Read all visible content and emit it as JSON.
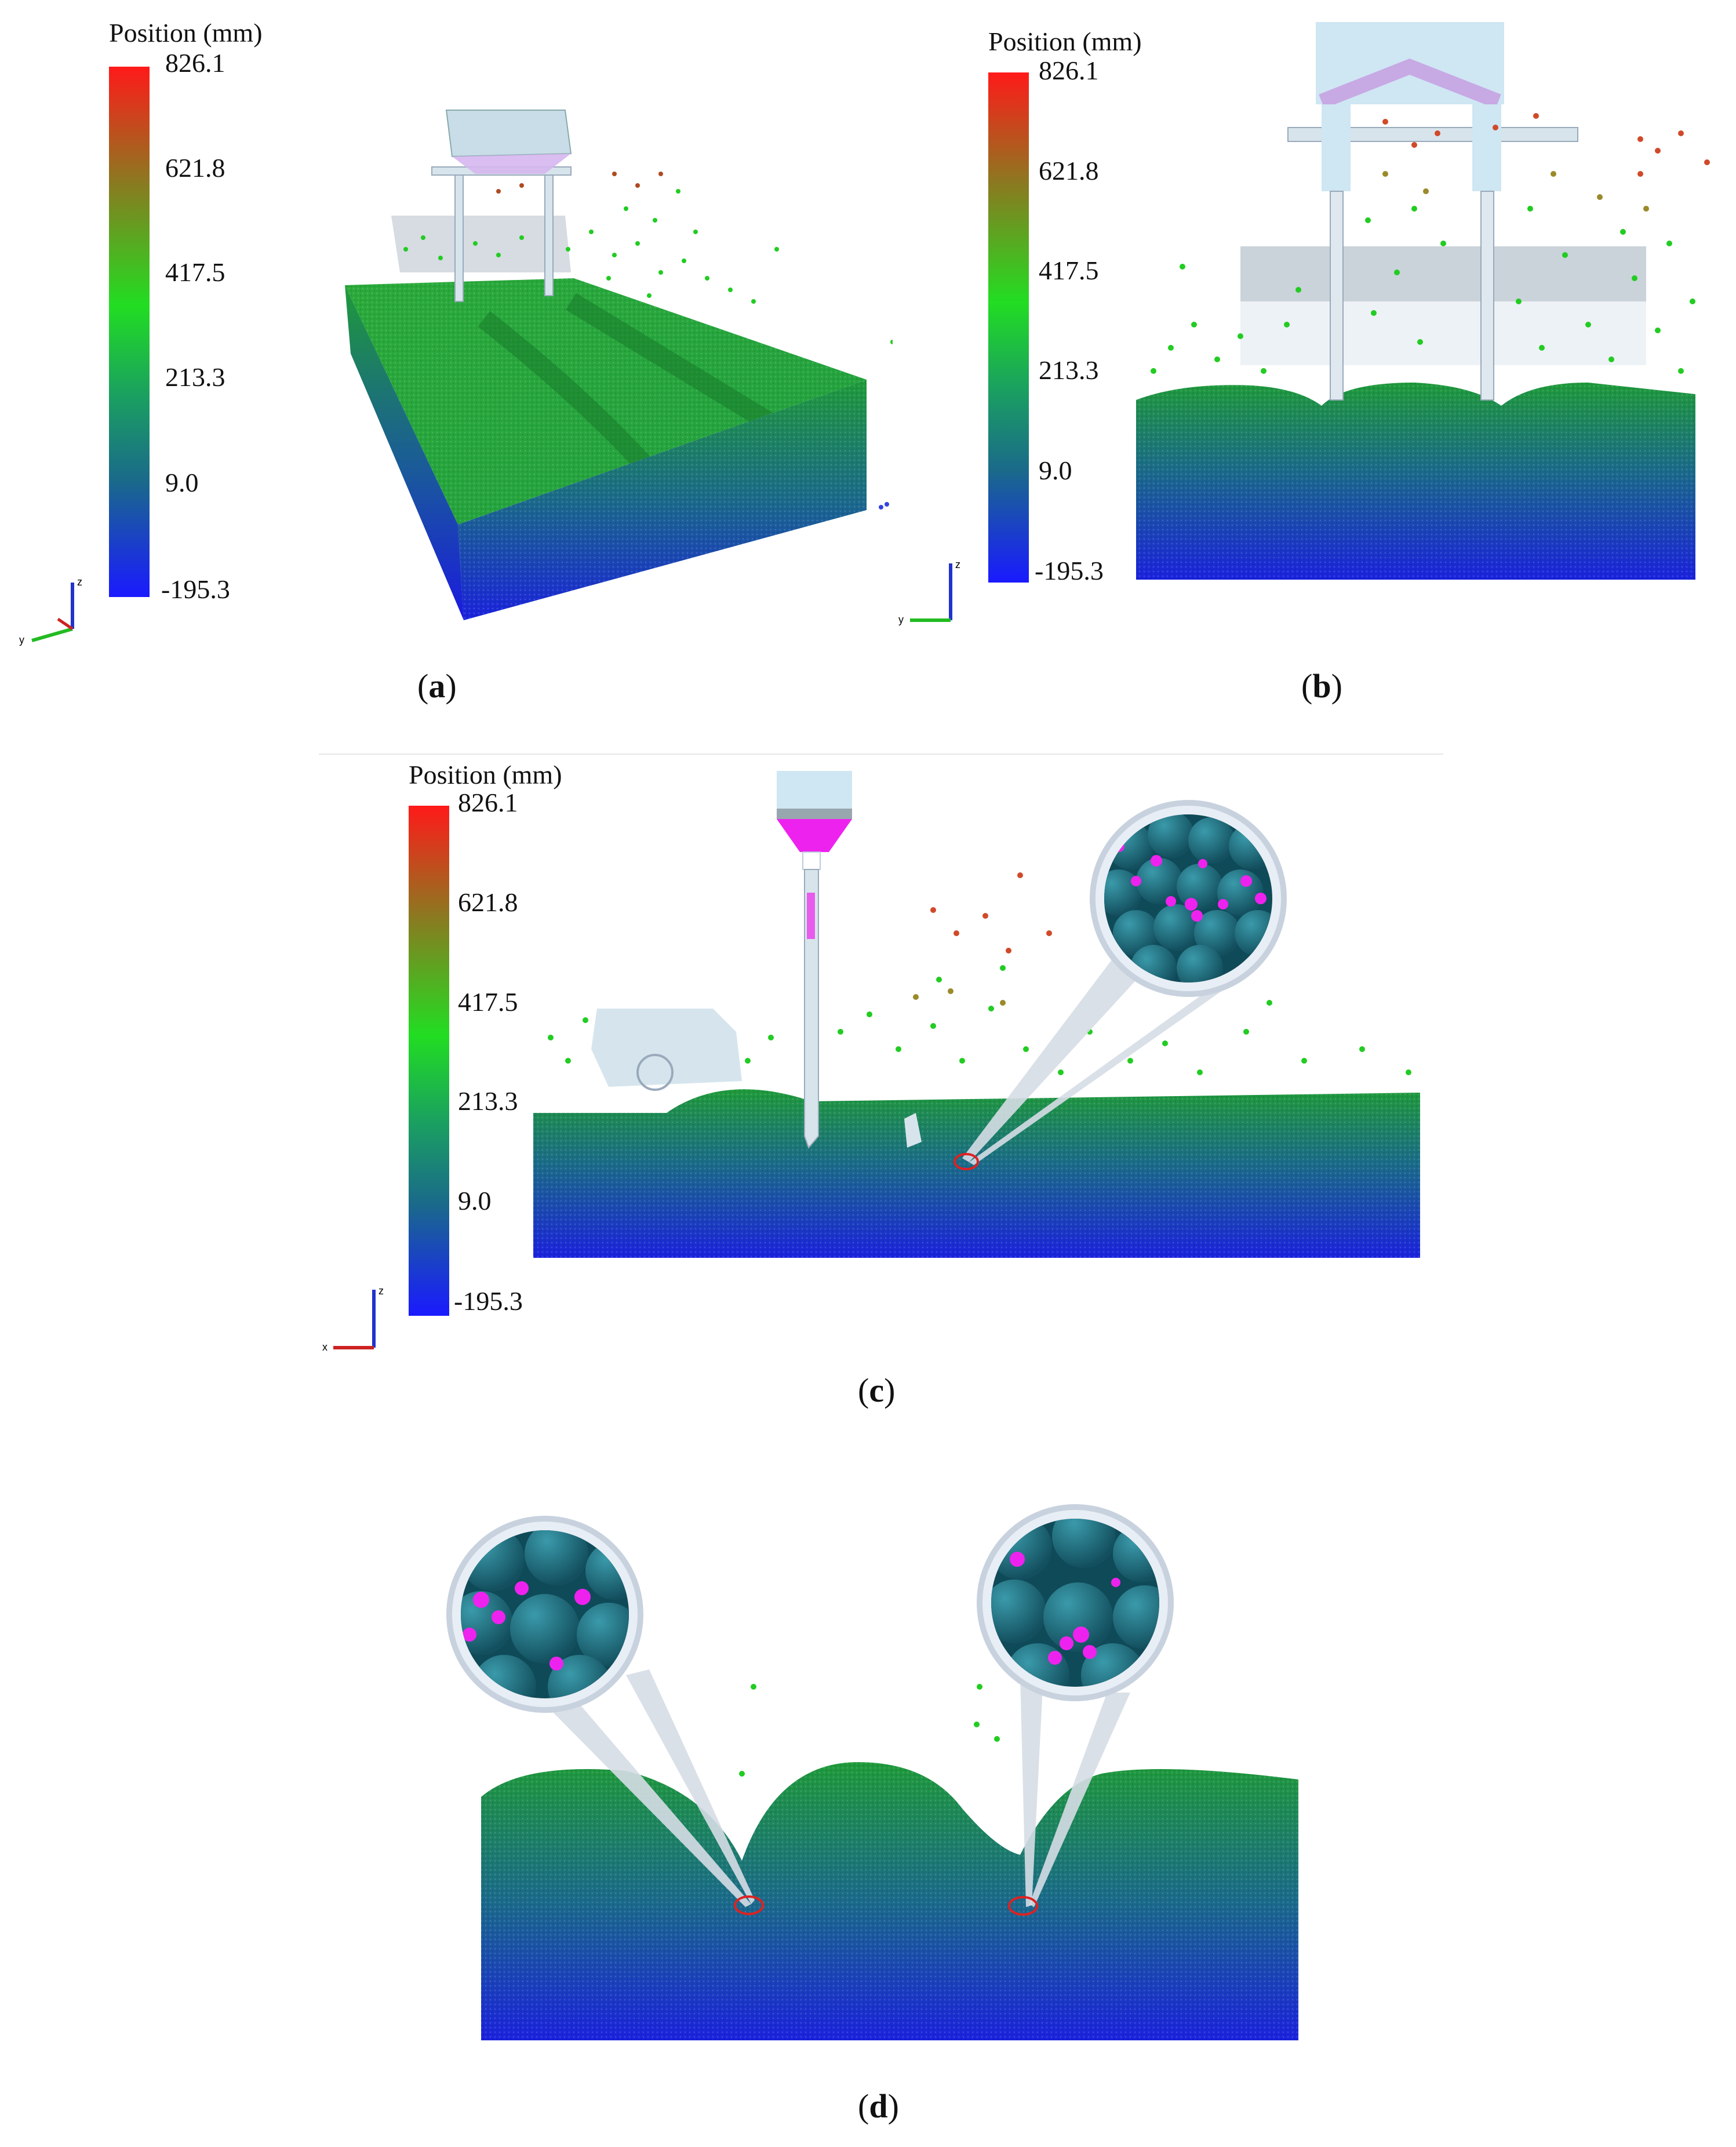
{
  "legend": {
    "title": "Position (mm)",
    "ticks": [
      "826.1",
      "621.8",
      "417.5",
      "213.3",
      "9.0",
      "-195.3"
    ],
    "colors": {
      "top": "#ff1a1a",
      "upper": "#9a7a20",
      "mid": "#22dd22",
      "low": "#1a6a8a",
      "bottom": "#1a1aff"
    }
  },
  "axis_labels": {
    "z": "z",
    "x": "x",
    "y": "y"
  },
  "colors": {
    "soil_top": "#1f9a3a",
    "soil_bottom": "#1a22cc",
    "particle_green": "#22cc22",
    "particle_red": "#c0392b",
    "tracer": "#ee22ee",
    "sphere": "#1f6e7e",
    "machine": "#c8dde8",
    "zoom_marker": "#dd2222"
  },
  "panels": [
    {
      "id": "a",
      "label": "a"
    },
    {
      "id": "b",
      "label": "b"
    },
    {
      "id": "c",
      "label": "c"
    },
    {
      "id": "d",
      "label": "d"
    }
  ]
}
